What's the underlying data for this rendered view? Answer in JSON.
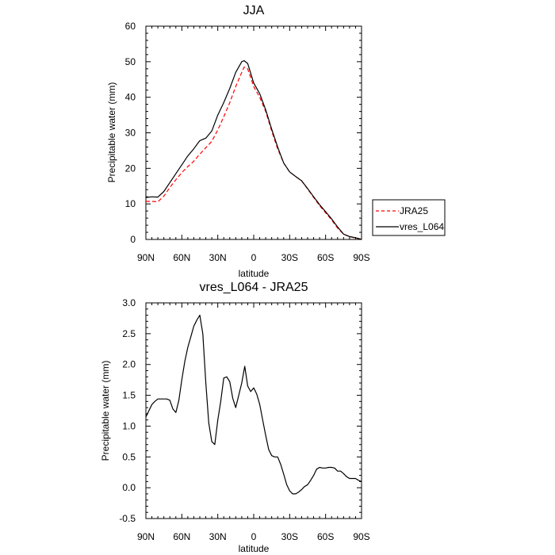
{
  "chart_data": [
    {
      "type": "line",
      "title": "JJA",
      "xlabel": "latitude",
      "ylabel": "Precipitable water (mm)",
      "xlim": [
        90,
        -90
      ],
      "ylim": [
        0,
        60
      ],
      "xticks": [
        {
          "value": 90,
          "label": "90N"
        },
        {
          "value": 60,
          "label": "60N"
        },
        {
          "value": 30,
          "label": "30N"
        },
        {
          "value": 0,
          "label": "0"
        },
        {
          "value": -30,
          "label": "30S"
        },
        {
          "value": -60,
          "label": "60S"
        },
        {
          "value": -90,
          "label": "90S"
        }
      ],
      "yticks": [
        0,
        10,
        20,
        30,
        40,
        50,
        60
      ],
      "legend_position": "right",
      "series": [
        {
          "name": "JRA25",
          "color": "#ff0000",
          "dash": "dashed",
          "x": [
            90,
            85,
            80,
            75,
            70,
            65,
            60,
            55,
            50,
            45,
            40,
            35,
            30,
            25,
            20,
            15,
            10,
            8,
            5,
            0,
            -5,
            -10,
            -15,
            -20,
            -25,
            -30,
            -35,
            -40,
            -45,
            -50,
            -55,
            -60,
            -65,
            -70,
            -75,
            -80,
            -85,
            -90
          ],
          "values": [
            10.7,
            10.7,
            10.6,
            12.2,
            14.6,
            16.8,
            18.8,
            20.5,
            22.0,
            24.0,
            25.8,
            27.6,
            30.8,
            34.5,
            38.5,
            43.0,
            47.0,
            48.5,
            48.0,
            43.0,
            40.0,
            36.0,
            30.5,
            25.5,
            21.5,
            19.0,
            17.7,
            16.5,
            14.2,
            11.8,
            9.5,
            7.5,
            5.5,
            3.2,
            1.5,
            0.8,
            0.4,
            0.1
          ]
        },
        {
          "name": "vres_L064",
          "color": "#000000",
          "dash": "solid",
          "x": [
            90,
            85,
            80,
            75,
            70,
            65,
            60,
            55,
            50,
            45,
            40,
            35,
            30,
            25,
            20,
            15,
            10,
            8,
            5,
            0,
            -5,
            -10,
            -15,
            -20,
            -25,
            -30,
            -35,
            -40,
            -45,
            -50,
            -55,
            -60,
            -65,
            -70,
            -75,
            -80,
            -85,
            -90
          ],
          "values": [
            11.8,
            12.0,
            11.9,
            13.5,
            16.0,
            18.5,
            21.0,
            23.5,
            25.5,
            27.8,
            28.5,
            30.5,
            35.0,
            38.5,
            42.5,
            47.0,
            50.0,
            50.3,
            49.5,
            44.0,
            41.0,
            36.5,
            31.0,
            26.0,
            21.5,
            19.0,
            17.7,
            16.5,
            14.3,
            12.0,
            9.8,
            7.8,
            5.8,
            3.5,
            1.5,
            0.8,
            0.5,
            0.0
          ]
        }
      ]
    },
    {
      "type": "line",
      "title": "vres_L064 - JRA25",
      "xlabel": "latitude",
      "ylabel": "Precipitable water (mm)",
      "xlim": [
        90,
        -90
      ],
      "ylim": [
        -0.5,
        3.0
      ],
      "xticks": [
        {
          "value": 90,
          "label": "90N"
        },
        {
          "value": 60,
          "label": "60N"
        },
        {
          "value": 30,
          "label": "30N"
        },
        {
          "value": 0,
          "label": "0"
        },
        {
          "value": -30,
          "label": "30S"
        },
        {
          "value": -60,
          "label": "60S"
        },
        {
          "value": -90,
          "label": "90S"
        }
      ],
      "yticks": [
        "-0.5",
        "0.0",
        "0.5",
        "1.0",
        "1.5",
        "2.0",
        "2.5",
        "3.0"
      ],
      "series": [
        {
          "color": "#000000",
          "dash": "solid",
          "x": [
            90,
            87.5,
            85,
            82.5,
            80,
            77.5,
            75,
            72.5,
            70,
            67.5,
            65,
            62.5,
            60,
            57.5,
            55,
            52.5,
            50,
            47.5,
            45,
            42.5,
            40,
            37.5,
            35,
            32.5,
            30,
            27.5,
            25,
            22.5,
            20,
            17.5,
            15,
            12.5,
            10,
            7.5,
            5,
            2.5,
            0,
            -2.5,
            -5,
            -7.5,
            -10,
            -12.5,
            -15,
            -17.5,
            -20,
            -22.5,
            -25,
            -27.5,
            -30,
            -32.5,
            -35,
            -37.5,
            -40,
            -42.5,
            -45,
            -47.5,
            -50,
            -52.5,
            -55,
            -57.5,
            -60,
            -62.5,
            -65,
            -67.5,
            -70,
            -72.5,
            -75,
            -77.5,
            -80,
            -82.5,
            -85,
            -87.5,
            -90
          ],
          "values": [
            1.15,
            1.25,
            1.35,
            1.4,
            1.44,
            1.44,
            1.44,
            1.44,
            1.42,
            1.28,
            1.22,
            1.42,
            1.75,
            2.05,
            2.28,
            2.45,
            2.62,
            2.72,
            2.8,
            2.5,
            1.7,
            1.05,
            0.75,
            0.7,
            1.1,
            1.4,
            1.78,
            1.8,
            1.72,
            1.45,
            1.3,
            1.5,
            1.7,
            1.97,
            1.65,
            1.56,
            1.62,
            1.52,
            1.35,
            1.1,
            0.85,
            0.62,
            0.52,
            0.5,
            0.5,
            0.38,
            0.22,
            0.05,
            -0.05,
            -0.1,
            -0.1,
            -0.07,
            -0.03,
            0.02,
            0.05,
            0.12,
            0.2,
            0.3,
            0.33,
            0.32,
            0.32,
            0.33,
            0.33,
            0.32,
            0.27,
            0.27,
            0.23,
            0.18,
            0.15,
            0.15,
            0.15,
            0.12,
            0.1
          ]
        }
      ]
    }
  ]
}
